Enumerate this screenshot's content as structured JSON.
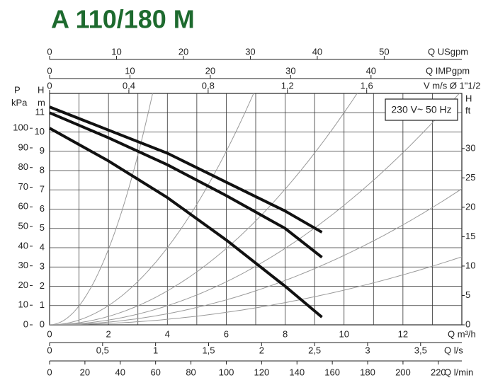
{
  "chart_data": {
    "type": "line",
    "title": "A 110/180 M",
    "annotation": "230 V~ 50 Hz",
    "xlabel": "Q m³/h",
    "xlim": [
      0,
      14
    ],
    "xticks": [
      0,
      2,
      4,
      6,
      8,
      10,
      12
    ],
    "ylabel": "H",
    "yunit": "m",
    "ylim": [
      0,
      12
    ],
    "yticks": [
      0,
      1,
      2,
      3,
      4,
      5,
      6,
      7,
      8,
      9,
      10,
      11
    ],
    "grid": true,
    "minor_grid": true,
    "secondary_x_axes": [
      {
        "label": "Q l/s",
        "lim": [
          0,
          3.889
        ],
        "ticks": [
          0,
          {
            "value": 0.5,
            "label": "0,5"
          },
          1,
          {
            "value": 1.5,
            "label": "1,5"
          },
          2,
          {
            "value": 2.5,
            "label": "2,5"
          },
          3,
          {
            "value": 3.5,
            "label": "3,5"
          }
        ]
      },
      {
        "label": "Q l/min",
        "lim": [
          0,
          233.3
        ],
        "ticks": [
          0,
          20,
          40,
          60,
          80,
          100,
          120,
          140,
          160,
          180,
          200,
          220
        ]
      },
      {
        "label": "Q USgpm",
        "lim": [
          0,
          61.6
        ],
        "ticks": [
          0,
          10,
          20,
          30,
          40,
          50
        ]
      },
      {
        "label": "Q IMPgpm",
        "lim": [
          0,
          51.3
        ],
        "ticks": [
          0,
          10,
          20,
          30,
          40
        ]
      },
      {
        "label": "V m/s Ø 1\"1/2",
        "lim": [
          0,
          2.08
        ],
        "ticks": [
          0,
          {
            "value": 0.4,
            "label": "0,4"
          },
          {
            "value": 0.8,
            "label": "0,8"
          },
          {
            "value": 1.2,
            "label": "1,2"
          },
          {
            "value": 1.6,
            "label": "1,6"
          }
        ]
      }
    ],
    "secondary_y_axes": [
      {
        "label": "P",
        "unit": "kPa",
        "lim": [
          0,
          117.7
        ],
        "ticks": [
          0,
          10,
          20,
          30,
          40,
          50,
          60,
          70,
          80,
          90,
          100
        ]
      },
      {
        "label": "H",
        "unit": "ft",
        "lim": [
          0,
          39.37
        ],
        "ticks": [
          0,
          5,
          10,
          15,
          20,
          25,
          30
        ]
      }
    ],
    "x": [
      0,
      2,
      4,
      6,
      8,
      9.25
    ],
    "series": [
      {
        "color": "#111111",
        "values": [
          11.3,
          10.1,
          8.9,
          7.4,
          5.9,
          4.8
        ]
      },
      {
        "color": "#111111",
        "values": [
          11.0,
          9.7,
          8.3,
          6.7,
          5.0,
          3.5
        ]
      },
      {
        "color": "#111111",
        "values": [
          10.2,
          8.5,
          6.6,
          4.4,
          2.0,
          0.4
        ]
      }
    ],
    "reference_color": "#9a9a9a",
    "reference_curves": [
      0.98,
      0.25,
      0.11,
      0.062,
      0.036,
      0.018
    ]
  }
}
